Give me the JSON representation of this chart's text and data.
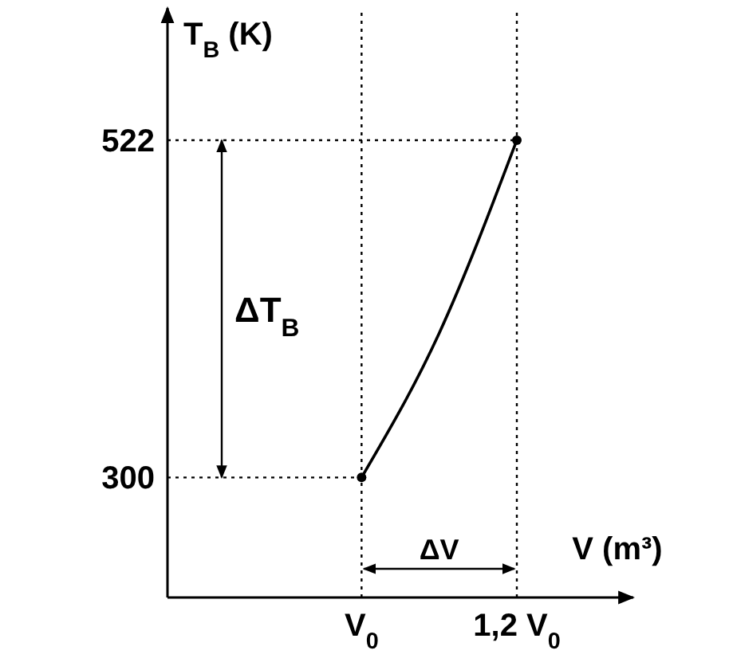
{
  "chart_data": {
    "type": "line",
    "xlabel": "V (m³)",
    "ylabel": "T$_{B}$ (K)",
    "categories": [
      null,
      null,
      "V$_{0}$",
      null,
      "1,2 V$_{0}$",
      null
    ],
    "ylim": [
      221,
      609
    ],
    "yticks": [
      300,
      522
    ],
    "series": [
      {
        "color": "#000000",
        "values": [
          null,
          null,
          300,
          395,
          522,
          null
        ]
      },
      {
        "type": "scatter",
        "color": "#000000",
        "x": [
          "V$_{0}$",
          "1,2 V$_{0}$"
        ],
        "values": [
          300,
          522
        ]
      }
    ],
    "ref_lines": [
      {
        "axis": "y",
        "value": 522,
        "line_style": "dotted"
      },
      {
        "axis": "y",
        "value": 300,
        "line_style": "dotted"
      },
      {
        "axis": "x",
        "value": "V$_{0}$",
        "line_style": "dotted"
      },
      {
        "axis": "x",
        "value": "1,2 V$_{0}$",
        "line_style": "dotted"
      }
    ],
    "annotations": [
      "ΔT$_{B}$",
      "ΔV"
    ]
  }
}
